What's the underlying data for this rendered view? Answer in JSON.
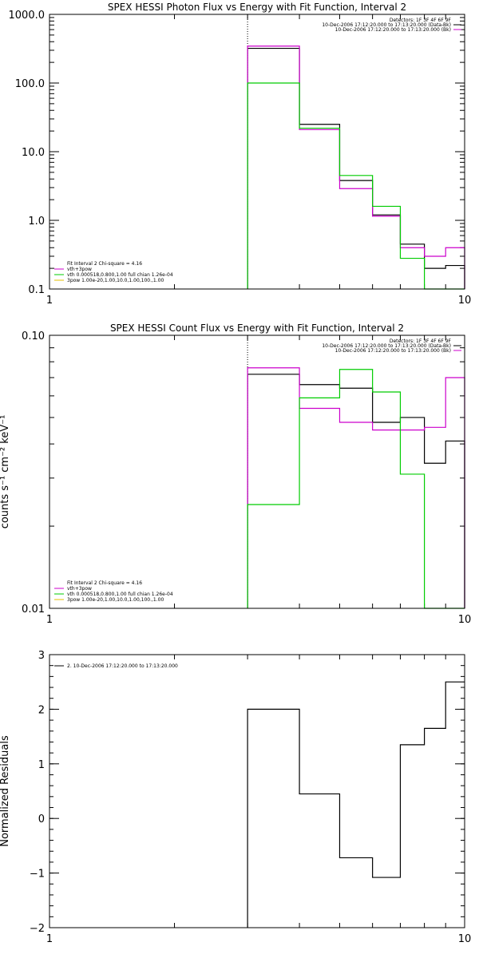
{
  "chart_data": [
    {
      "type": "line",
      "step": true,
      "title": "SPEX HESSI Photon Flux vs Energy with Fit Function, Interval 2",
      "ylabel": "",
      "xscale": "log",
      "yscale": "log",
      "xlim": [
        1,
        10
      ],
      "ylim": [
        0.1,
        1000
      ],
      "xticks": [
        1,
        10
      ],
      "yticks": [
        0.1,
        1.0,
        10.0,
        100.0,
        1000.0
      ],
      "ytick_labels": [
        "0.1",
        "1.0",
        "10.0",
        "100.0",
        "1000.0"
      ],
      "vline": 3,
      "legend_left": {
        "lines": [
          {
            "text": "Fit Interval 2   Chi-square = 4.16",
            "color": "#000000",
            "swatch": false
          },
          {
            "text": "vth+3pow",
            "color": "#cc00cc",
            "swatch": true
          },
          {
            "text": "vth 0.000518,0.800,1.00  full chian 1.26e-04",
            "color": "#00cc00",
            "swatch": true
          },
          {
            "text": "3pow 1.00e-20,1.00,10.0,1.00,100.,1.00",
            "color": "#e6c000",
            "swatch": true
          }
        ]
      },
      "legend_right": {
        "lines": [
          {
            "text": "Detectors: 1F 3F 4F 6F 9F",
            "color": "#000000",
            "swatch": false
          },
          {
            "text": "10-Dec-2006 17:12:20.000 to 17:13:20.000 (Data-Bk)",
            "color": "#000000",
            "swatch": true
          },
          {
            "text": "10-Dec-2006 17:12:20.000 to 17:13:20.000 (Bk)",
            "color": "#cc00cc",
            "swatch": true
          }
        ]
      },
      "series": [
        {
          "color": "#000000",
          "edges": [
            3,
            4,
            5,
            6,
            7,
            8,
            9,
            10
          ],
          "values": [
            320,
            25,
            3.8,
            1.2,
            0.45,
            0.2,
            0.22
          ]
        },
        {
          "color": "#cc00cc",
          "edges": [
            3,
            4,
            5,
            6,
            7,
            8,
            9,
            10
          ],
          "values": [
            345,
            21,
            2.9,
            1.15,
            0.4,
            0.3,
            0.4
          ]
        },
        {
          "color": "#00cc00",
          "edges": [
            3,
            4,
            5,
            6,
            7,
            8,
            9,
            10
          ],
          "values": [
            100,
            22,
            4.5,
            1.6,
            0.28,
            0.1,
            0.1
          ]
        }
      ]
    },
    {
      "type": "line",
      "step": true,
      "title": "SPEX HESSI Count Flux vs Energy with Fit Function, Interval 2",
      "ylabel": "counts s⁻¹ cm⁻² keV⁻¹",
      "xscale": "log",
      "yscale": "log",
      "xlim": [
        1,
        10
      ],
      "ylim": [
        0.01,
        0.1
      ],
      "xticks": [
        1,
        10
      ],
      "yticks": [
        0.01,
        0.1
      ],
      "ytick_labels": [
        "0.01",
        "0.10"
      ],
      "vline": 3,
      "legend_left": {
        "lines": [
          {
            "text": "Fit Interval 2   Chi-square = 4.16",
            "color": "#000000",
            "swatch": false
          },
          {
            "text": "vth+3pow",
            "color": "#cc00cc",
            "swatch": true
          },
          {
            "text": "vth 0.000518,0.800,1.00  full chian 1.26e-04",
            "color": "#00cc00",
            "swatch": true
          },
          {
            "text": "3pow 1.00e-20,1.00,10.0,1.00,100.,1.00",
            "color": "#e6c000",
            "swatch": true
          }
        ]
      },
      "legend_right": {
        "lines": [
          {
            "text": "Detectors: 1F 3F 4F 6F 9F",
            "color": "#000000",
            "swatch": false
          },
          {
            "text": "10-Dec-2006 17:12:20.000 to 17:13:20.000 (Data-Bk)",
            "color": "#000000",
            "swatch": true
          },
          {
            "text": "10-Dec-2006 17:12:20.000 to 17:13:20.000 (Bk)",
            "color": "#cc00cc",
            "swatch": true
          }
        ]
      },
      "series": [
        {
          "color": "#000000",
          "edges": [
            3,
            4,
            5,
            6,
            7,
            8,
            9,
            10
          ],
          "values": [
            0.072,
            0.066,
            0.064,
            0.048,
            0.05,
            0.034,
            0.041
          ]
        },
        {
          "color": "#cc00cc",
          "edges": [
            3,
            4,
            5,
            6,
            7,
            8,
            9,
            10
          ],
          "values": [
            0.076,
            0.054,
            0.048,
            0.045,
            0.045,
            0.046,
            0.07
          ]
        },
        {
          "color": "#00cc00",
          "edges": [
            3,
            4,
            5,
            6,
            7,
            8,
            9,
            10
          ],
          "values": [
            0.024,
            0.059,
            0.075,
            0.062,
            0.031,
            0.009,
            0.009
          ]
        }
      ]
    },
    {
      "type": "line",
      "step": true,
      "title": "",
      "ylabel": "Normalized  Residuals",
      "xscale": "log",
      "yscale": "linear",
      "xlim": [
        1,
        10
      ],
      "ylim": [
        -2,
        3
      ],
      "xticks": [
        1,
        10
      ],
      "yticks": [
        -2,
        -1,
        0,
        1,
        2,
        3
      ],
      "ytick_labels": [
        "−2",
        "−1",
        "0",
        "1",
        "2",
        "3"
      ],
      "legend_left": {
        "lines": [
          {
            "text": "2. 10-Dec-2006 17:12:20.000 to 17:13:20.000",
            "color": "#000000",
            "swatch": true
          }
        ]
      },
      "series": [
        {
          "color": "#000000",
          "edges": [
            3,
            4,
            5,
            6,
            7,
            8,
            9,
            10
          ],
          "values": [
            2.0,
            0.45,
            -0.72,
            -1.08,
            1.35,
            1.65,
            2.5
          ]
        }
      ]
    }
  ]
}
